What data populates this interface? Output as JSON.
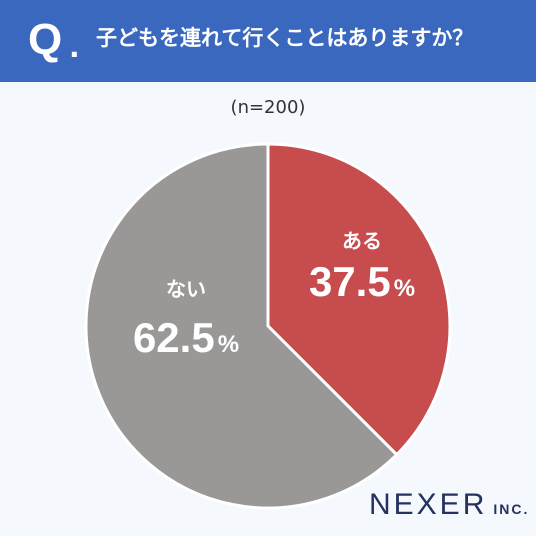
{
  "header": {
    "q_label": "Q",
    "question": "子どもを連れて行くことはありますか？"
  },
  "sample_note": "(n=200)",
  "chart_data": {
    "type": "pie",
    "title": "子どもを連れて行くことはありますか？",
    "slices": [
      {
        "label": "ある",
        "value": 37.5,
        "display": "37.5",
        "unit": "%",
        "color": "#c64c4e"
      },
      {
        "label": "ない",
        "value": 62.5,
        "display": "62.5",
        "unit": "%",
        "color": "#9a9797"
      }
    ],
    "start_angle": "12 o'clock",
    "direction": "clockwise"
  },
  "brand": {
    "name": "NEXER",
    "suffix": "INC."
  },
  "colors": {
    "header_bg": "#3a68bf",
    "page_bg": "#f5f8fc",
    "brand_text": "#23325f"
  }
}
